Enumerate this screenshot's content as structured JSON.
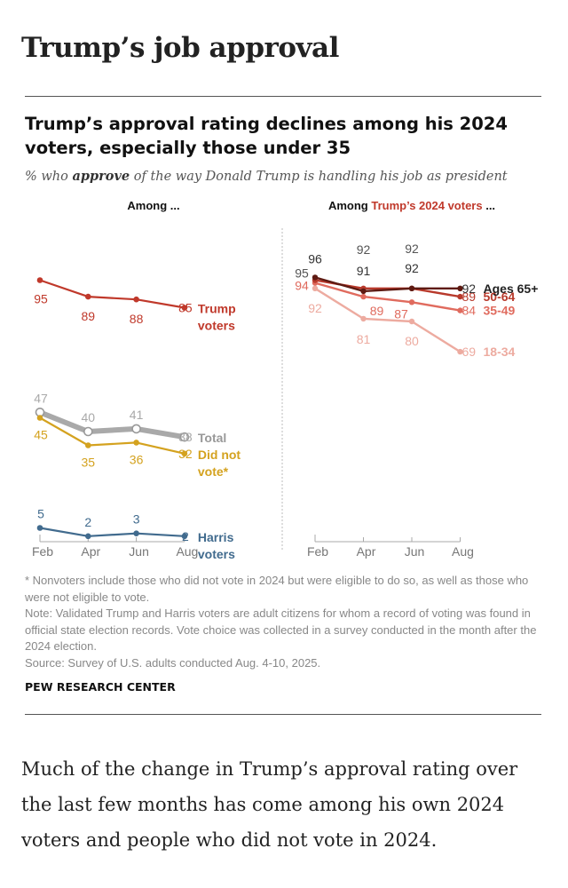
{
  "page": {
    "heading": "Trump’s job approval",
    "body_text": "Much of the change in Trump’s approval rating over the last few months has come among his own 2024 voters and people who did not vote in 2024."
  },
  "figure": {
    "title": "Trump’s approval rating declines among his 2024 voters, especially those under 35",
    "subtitle_pre": "% who ",
    "subtitle_bold": "approve",
    "subtitle_post": " of the way Donald Trump is handling his job as president",
    "note_1": "* Nonvoters include those who did not vote in 2024 but were eligible to do so, as well as those who were not eligible to vote.",
    "note_2": "Note: Validated Trump and Harris voters are adult citizens for whom a record of voting was found in official state election records. Vote choice was collected in a survey conducted in the month after the 2024 election.",
    "source": "Source: Survey of U.S. adults conducted Aug. 4-10, 2025.",
    "brand": "PEW RESEARCH CENTER"
  },
  "chart_data": [
    {
      "type": "line",
      "panel_title": "Among ...",
      "categories": [
        "Feb",
        "Apr",
        "Jun",
        "Aug"
      ],
      "ylim": [
        0,
        100
      ],
      "grid": false,
      "series": [
        {
          "name": "Trump voters",
          "values": [
            95,
            89,
            88,
            85
          ],
          "color": "#c0392b",
          "open_markers": false
        },
        {
          "name": "Total",
          "values": [
            47,
            40,
            41,
            38
          ],
          "color": "#a9a9a9",
          "open_markers": true
        },
        {
          "name": "Did not vote*",
          "values": [
            45,
            35,
            36,
            32
          ],
          "color": "#d4a21f",
          "open_markers": false
        },
        {
          "name": "Harris voters",
          "values": [
            5,
            2,
            3,
            2
          ],
          "color": "#416b8e",
          "open_markers": false
        }
      ]
    },
    {
      "type": "line",
      "panel_title_pre": "Among ",
      "panel_title_highlight": "Trump’s 2024 voters",
      "panel_title_post": " ...",
      "highlight_color": "#c0392b",
      "categories": [
        "Feb",
        "Apr",
        "Jun",
        "Aug"
      ],
      "ylim": [
        0,
        100
      ],
      "grid": false,
      "series": [
        {
          "name": "Ages 65+",
          "values": [
            96,
            91,
            92,
            92
          ],
          "color": "#5e1a12"
        },
        {
          "name": "50-64",
          "values": [
            95,
            92,
            92,
            89
          ],
          "color": "#b83a2c"
        },
        {
          "name": "35-49",
          "values": [
            94,
            89,
            87,
            84
          ],
          "color": "#e06b5e"
        },
        {
          "name": "18-34",
          "values": [
            92,
            81,
            80,
            69
          ],
          "color": "#edaba0"
        }
      ]
    }
  ]
}
